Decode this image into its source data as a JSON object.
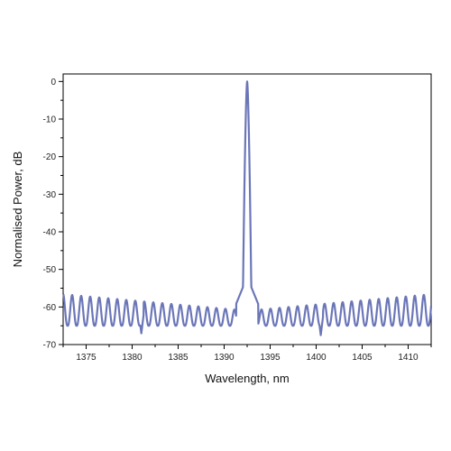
{
  "chart_data": {
    "type": "line",
    "title": "",
    "xlabel": "Wavelength, nm",
    "ylabel": "Normalised Power, dB",
    "xlim": [
      1372.5,
      1412.5
    ],
    "ylim": [
      -70,
      2
    ],
    "x_ticks": [
      1375,
      1380,
      1385,
      1390,
      1395,
      1400,
      1405,
      1410
    ],
    "y_ticks": [
      0,
      -10,
      -20,
      -30,
      -40,
      -50,
      -60,
      -70
    ],
    "grid": false,
    "legend": "none",
    "series": [
      {
        "color": "#6b76b8",
        "peak": {
          "x": 1392.5,
          "y": 0
        },
        "fringe_period_nm": 0.98,
        "fringe_max_db": [
          -56,
          -62
        ],
        "fringe_min_db": [
          -64,
          -66
        ],
        "points": [
          [
            1372.5,
            -56.0
          ],
          [
            1373.0,
            -64.0
          ],
          [
            1373.5,
            -56.5
          ],
          [
            1374.0,
            -64.5
          ],
          [
            1375.0,
            -57.0
          ],
          [
            1376.0,
            -57.5
          ],
          [
            1377.0,
            -57.0
          ],
          [
            1378.0,
            -56.0
          ],
          [
            1379.0,
            -56.5
          ],
          [
            1380.0,
            -55.5
          ],
          [
            1381.0,
            -67.0
          ],
          [
            1382.0,
            -56.0
          ],
          [
            1382.5,
            -63.0
          ],
          [
            1383.0,
            -54.0
          ],
          [
            1385.0,
            -53.5
          ],
          [
            1387.0,
            -53.0
          ],
          [
            1389.0,
            -53.0
          ],
          [
            1390.5,
            -53.5
          ],
          [
            1391.5,
            -52.0
          ],
          [
            1392.0,
            -45.0
          ],
          [
            1392.5,
            0.0
          ],
          [
            1393.0,
            -48.0
          ],
          [
            1393.5,
            -53.0
          ],
          [
            1395.0,
            -53.5
          ],
          [
            1397.0,
            -52.0
          ],
          [
            1398.0,
            -51.0
          ],
          [
            1399.0,
            -53.0
          ],
          [
            1400.0,
            -52.5
          ],
          [
            1400.5,
            -67.5
          ],
          [
            1402.0,
            -54.0
          ],
          [
            1404.0,
            -52.5
          ],
          [
            1405.0,
            -53.5
          ],
          [
            1407.0,
            -55.0
          ],
          [
            1409.0,
            -56.0
          ],
          [
            1411.0,
            -57.5
          ],
          [
            1412.5,
            -65.0
          ]
        ]
      }
    ]
  }
}
